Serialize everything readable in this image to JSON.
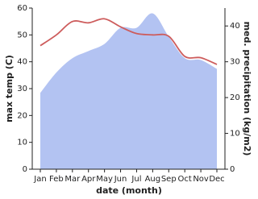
{
  "chart_data": {
    "type": "line",
    "x_label": "date (month)",
    "y_label": "max temp (C)",
    "y2_label": "med. precipitation (kg/m2)",
    "categories": [
      "Jan",
      "Feb",
      "Mar",
      "Apr",
      "May",
      "Jun",
      "Jul",
      "Aug",
      "Sep",
      "Oct",
      "Nov",
      "Dec"
    ],
    "series": [
      {
        "name": "max temp",
        "color": "#cd5c5c",
        "kind": "line",
        "axis": "y",
        "values": [
          46,
          50,
          55,
          54.5,
          56,
          53,
          50.5,
          50,
          49.5,
          42,
          41.5,
          39
        ]
      },
      {
        "name": "precipitation",
        "color": "#b3c3f2",
        "kind": "area",
        "axis": "y2",
        "values": [
          21.3,
          27,
          31,
          33,
          35,
          39.5,
          39.5,
          43.5,
          37,
          31,
          30.5,
          28
        ]
      }
    ],
    "ylim": [
      0,
      60
    ],
    "yticks": [
      0,
      10,
      20,
      30,
      40,
      50,
      60
    ],
    "y2lim": [
      0,
      45
    ],
    "y2ticks": [
      0,
      10,
      20,
      30,
      40
    ]
  }
}
